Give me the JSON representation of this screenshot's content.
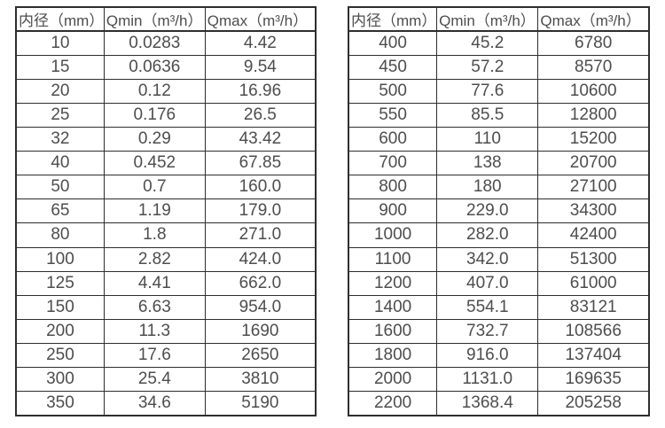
{
  "page": {
    "background": "#ffffff",
    "text_color": "#4d4d4d",
    "border_color": "#2e2e2e"
  },
  "chart_data": [
    {
      "type": "table",
      "name": "flow-rate-table-small-diameters",
      "columns": [
        "内径（mm）",
        "Qmin（m³/h）",
        "Qmax（m³/h）"
      ],
      "rows": [
        [
          "10",
          "0.0283",
          "4.42"
        ],
        [
          "15",
          "0.0636",
          "9.54"
        ],
        [
          "20",
          "0.12",
          "16.96"
        ],
        [
          "25",
          "0.176",
          "26.5"
        ],
        [
          "32",
          "0.29",
          "43.42"
        ],
        [
          "40",
          "0.452",
          "67.85"
        ],
        [
          "50",
          "0.7",
          "160.0"
        ],
        [
          "65",
          "1.19",
          "179.0"
        ],
        [
          "80",
          "1.8",
          "271.0"
        ],
        [
          "100",
          "2.82",
          "424.0"
        ],
        [
          "125",
          "4.41",
          "662.0"
        ],
        [
          "150",
          "6.63",
          "954.0"
        ],
        [
          "200",
          "11.3",
          "1690"
        ],
        [
          "250",
          "17.6",
          "2650"
        ],
        [
          "300",
          "25.4",
          "3810"
        ],
        [
          "350",
          "34.6",
          "5190"
        ]
      ]
    },
    {
      "type": "table",
      "name": "flow-rate-table-large-diameters",
      "columns": [
        "内径（mm）",
        "Qmin（m³/h）",
        "Qmax（m³/h）"
      ],
      "rows": [
        [
          "400",
          "45.2",
          "6780"
        ],
        [
          "450",
          "57.2",
          "8570"
        ],
        [
          "500",
          "77.6",
          "10600"
        ],
        [
          "550",
          "85.5",
          "12800"
        ],
        [
          "600",
          "110",
          "15200"
        ],
        [
          "700",
          "138",
          "20700"
        ],
        [
          "800",
          "180",
          "27100"
        ],
        [
          "900",
          "229.0",
          "34300"
        ],
        [
          "1000",
          "282.0",
          "42400"
        ],
        [
          "1100",
          "342.0",
          "51300"
        ],
        [
          "1200",
          "407.0",
          "61000"
        ],
        [
          "1400",
          "554.1",
          "83121"
        ],
        [
          "1600",
          "732.7",
          "108566"
        ],
        [
          "1800",
          "916.0",
          "137404"
        ],
        [
          "2000",
          "1131.0",
          "169635"
        ],
        [
          "2200",
          "1368.4",
          "205258"
        ]
      ]
    }
  ]
}
